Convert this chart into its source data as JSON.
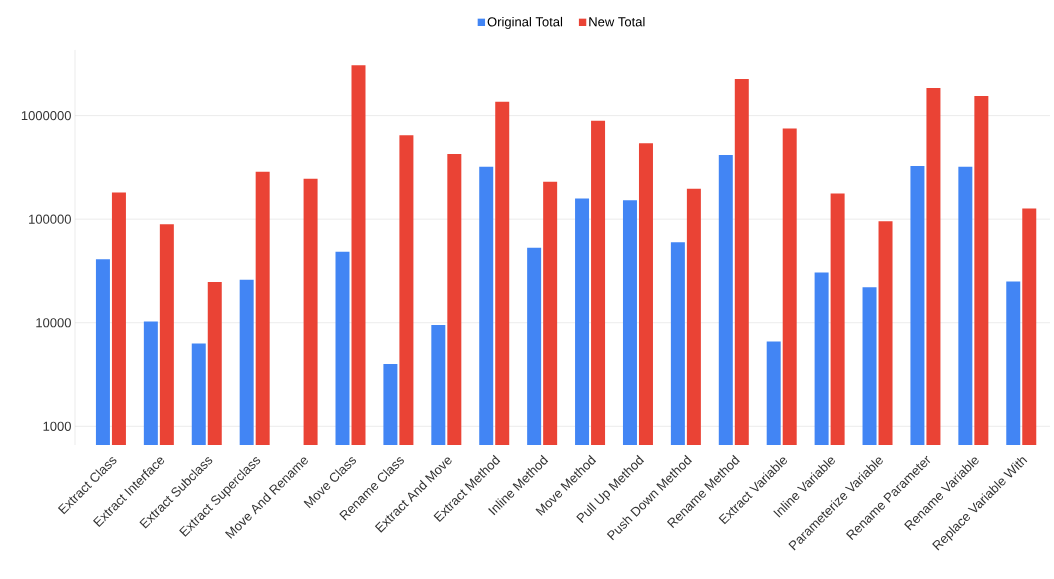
{
  "chart_data": {
    "type": "bar",
    "log": "y",
    "grid": "y",
    "legend": "top",
    "categories": [
      "Extract Class",
      "Extract Interface",
      "Extract Subclass",
      "Extract Superclass",
      "Move And Rename",
      "Move Class",
      "Rename Class",
      "Extract And Move",
      "Extract Method",
      "Inline Method",
      "Move Method",
      "Pull Up Method",
      "Push Down Method",
      "Rename Method",
      "Extract Variable",
      "Inline Variable",
      "Parameterize Variable",
      "Rename Parameter",
      "Rename Variable",
      "Replace Variable With"
    ],
    "series": [
      {
        "name": "Original Total",
        "color": "#4285f4",
        "values": [
          41000,
          10300,
          6300,
          26000,
          null,
          48500,
          4000,
          9500,
          320000,
          53000,
          158000,
          152000,
          60000,
          417000,
          6600,
          30600,
          22000,
          327000,
          320000,
          25000
        ]
      },
      {
        "name": "New Total",
        "color": "#ea4335",
        "values": [
          181000,
          89500,
          24700,
          287000,
          245000,
          3060000,
          646000,
          426000,
          1360000,
          230000,
          890000,
          541000,
          197000,
          2250000,
          751000,
          177000,
          95500,
          1850000,
          1550000,
          127000
        ]
      }
    ],
    "ylim": [
      660,
      4300000
    ],
    "yticks": [
      1000,
      10000,
      100000,
      1000000
    ]
  }
}
